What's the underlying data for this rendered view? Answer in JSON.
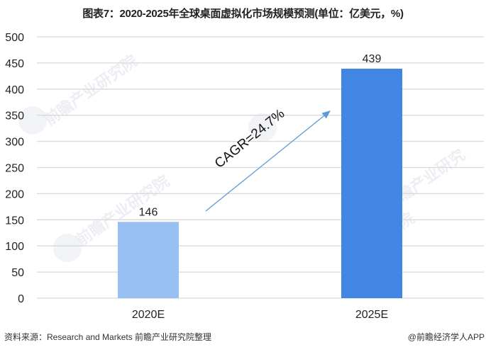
{
  "title": "图表7：2020-2025年全球桌面虚拟化市场规模预测(单位：亿美元，%)",
  "footer": {
    "source": "资料来源：Research and Markets 前瞻产业研究院整理",
    "credit": "@前瞻经济学人APP"
  },
  "watermark": "前瞻产业研究院",
  "colors": {
    "bar_2020": "#99C0F3",
    "bar_2025": "#4286E3",
    "arrow": "#5B9BD5",
    "grid": "#D9D9D9"
  },
  "chart_data": {
    "type": "bar",
    "title": "图表7：2020-2025年全球桌面虚拟化市场规模预测(单位：亿美元，%)",
    "categories": [
      "2020E",
      "2025E"
    ],
    "values": [
      146,
      439
    ],
    "data_labels": [
      "146",
      "439"
    ],
    "xlabel": "",
    "ylabel": "",
    "ylim": [
      0,
      500
    ],
    "yticks": [
      0,
      50,
      100,
      150,
      200,
      250,
      300,
      350,
      400,
      450,
      500
    ],
    "grid": true,
    "legend": null,
    "annotations": [
      {
        "type": "arrow",
        "text": "CAGR=24.7%",
        "from": "2020E",
        "to": "2025E"
      }
    ]
  }
}
